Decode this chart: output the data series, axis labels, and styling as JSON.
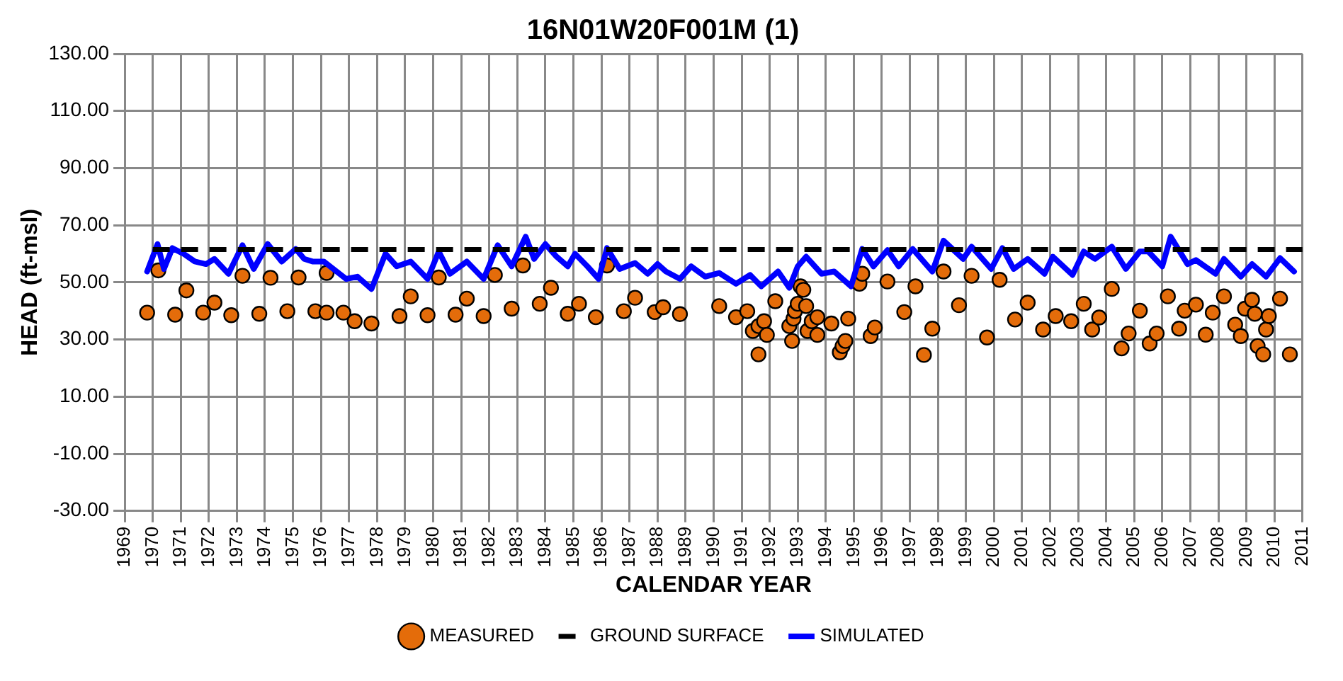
{
  "chart_data": {
    "type": "scatter",
    "title": "16N01W20F001M (1)",
    "xlabel": "CALENDAR YEAR",
    "ylabel": "HEAD (ft-msl)",
    "xlim": [
      1969,
      2011
    ],
    "xticks": [
      1969,
      1970,
      1971,
      1972,
      1973,
      1974,
      1975,
      1976,
      1977,
      1978,
      1979,
      1980,
      1981,
      1982,
      1983,
      1984,
      1985,
      1986,
      1987,
      1988,
      1989,
      1990,
      1991,
      1992,
      1993,
      1994,
      1995,
      1996,
      1997,
      1998,
      1999,
      2000,
      2001,
      2002,
      2003,
      2004,
      2005,
      2006,
      2007,
      2008,
      2009,
      2010,
      2011
    ],
    "ylim": [
      -30,
      130
    ],
    "yticks": [
      {
        "value": -30,
        "label": "-30.00"
      },
      {
        "value": -10,
        "label": "-10.00"
      },
      {
        "value": 10,
        "label": "10.00"
      },
      {
        "value": 30,
        "label": "30.00"
      },
      {
        "value": 50,
        "label": "50.00"
      },
      {
        "value": 70,
        "label": "70.00"
      },
      {
        "value": 90,
        "label": "90.00"
      },
      {
        "value": 110,
        "label": "110.00"
      },
      {
        "value": 130,
        "label": "130.00"
      }
    ],
    "grid": true,
    "legend": "bottom",
    "series": [
      {
        "name": "MEASURED",
        "type": "scatter",
        "marker": "circle",
        "color": "#e46c0a",
        "x": [
          1969.8,
          1970.2,
          1970.8,
          1971.2,
          1971.8,
          1972.2,
          1972.8,
          1973.2,
          1973.8,
          1974.2,
          1974.8,
          1975.2,
          1975.8,
          1976.2,
          1976.2,
          1976.8,
          1977.2,
          1977.8,
          1978.8,
          1979.2,
          1979.8,
          1980.2,
          1980.8,
          1981.2,
          1981.8,
          1982.2,
          1982.8,
          1983.2,
          1983.8,
          1984.2,
          1984.8,
          1985.2,
          1985.8,
          1986.2,
          1986.8,
          1987.2,
          1987.9,
          1988.2,
          1988.8,
          1990.2,
          1990.8,
          1991.2,
          1991.4,
          1991.6,
          1991.6,
          1991.8,
          1991.9,
          1992.2,
          1992.7,
          1992.8,
          1992.85,
          1992.9,
          1993.0,
          1993.1,
          1993.2,
          1993.3,
          1993.35,
          1993.5,
          1993.7,
          1993.7,
          1994.2,
          1994.5,
          1994.6,
          1994.7,
          1994.8,
          1995.2,
          1995.3,
          1995.6,
          1995.75,
          1996.2,
          1996.8,
          1997.2,
          1997.5,
          1997.8,
          1998.2,
          1998.75,
          1999.2,
          1999.75,
          2000.2,
          2000.75,
          2001.2,
          2001.75,
          2002.2,
          2002.75,
          2003.2,
          2003.5,
          2003.75,
          2004.2,
          2004.55,
          2004.8,
          2005.2,
          2005.55,
          2005.8,
          2006.2,
          2006.6,
          2006.8,
          2007.2,
          2007.55,
          2007.8,
          2008.2,
          2008.6,
          2008.8,
          2008.95,
          2009.2,
          2009.3,
          2009.4,
          2009.6,
          2009.7,
          2009.8,
          2010.2,
          2010.55
        ],
        "values": [
          39.4,
          54.2,
          38.7,
          47.2,
          39.4,
          42.9,
          38.5,
          52.3,
          39,
          51.6,
          39.9,
          51.7,
          39.9,
          39.4,
          53.3,
          39.4,
          36.4,
          35.6,
          38.2,
          45.1,
          38.5,
          51.7,
          38.7,
          44.3,
          38.2,
          52.6,
          40.8,
          55.9,
          42.5,
          48.1,
          39,
          42.5,
          37.8,
          55.9,
          39.9,
          44.6,
          39.6,
          41.3,
          38.9,
          41.7,
          37.8,
          39.9,
          33,
          24.8,
          34.7,
          36.4,
          31.6,
          43.4,
          34.7,
          29.5,
          37.3,
          39.9,
          42.5,
          48.6,
          47.4,
          41.7,
          33,
          36.4,
          31.6,
          37.8,
          35.6,
          25.5,
          27.7,
          29.5,
          37.3,
          49.5,
          53,
          31.2,
          34.2,
          50.3,
          39.6,
          48.6,
          24.6,
          33.8,
          53.8,
          42,
          52.3,
          30.7,
          50.9,
          37,
          42.9,
          33.5,
          38.2,
          36.4,
          42.5,
          33.5,
          37.7,
          47.7,
          26.9,
          32.1,
          40.1,
          28.6,
          32.1,
          45.1,
          33.8,
          40.1,
          42.2,
          31.7,
          39.4,
          45.1,
          35.2,
          31.2,
          40.8,
          43.9,
          39,
          27.7,
          24.8,
          33.5,
          38.2,
          44.3,
          24.8
        ]
      },
      {
        "name": "GROUND SURFACE",
        "type": "line",
        "marker": "none",
        "line_style": "dashed",
        "color": "#000000",
        "x": [
          1970,
          2011
        ],
        "values": [
          61.5,
          61.5
        ]
      },
      {
        "name": "SIMULATED",
        "type": "line",
        "marker": "none",
        "line_style": "solid",
        "color": "#0000ff",
        "x": [
          1969.8,
          1970.17,
          1970.4,
          1970.7,
          1971.1,
          1971.5,
          1971.9,
          1972.2,
          1972.7,
          1973.2,
          1973.6,
          1974.1,
          1974.6,
          1975.1,
          1975.4,
          1975.7,
          1976.1,
          1976.9,
          1977.3,
          1977.8,
          1978.3,
          1978.7,
          1979.2,
          1979.8,
          1980.2,
          1980.6,
          1981.2,
          1981.8,
          1982.3,
          1982.8,
          1983.3,
          1983.6,
          1984,
          1984.4,
          1984.8,
          1985.06,
          1985.5,
          1985.9,
          1986.2,
          1986.65,
          1987.2,
          1987.65,
          1988,
          1988.3,
          1988.8,
          1989.2,
          1989.7,
          1990.2,
          1990.8,
          1991.3,
          1991.7,
          1992.3,
          1992.7,
          1993,
          1993.3,
          1993.85,
          1994.3,
          1994.9,
          1995.3,
          1995.7,
          1996.2,
          1996.6,
          1997.1,
          1997.8,
          1998.2,
          1998.9,
          1999.2,
          1999.9,
          2000.3,
          2000.7,
          2001.2,
          2001.8,
          2002.1,
          2002.8,
          2003.2,
          2003.6,
          2004.2,
          2004.7,
          2005.2,
          2005.5,
          2006,
          2006.3,
          2006.9,
          2007.2,
          2007.9,
          2008.2,
          2008.8,
          2009.2,
          2009.7,
          2010.2,
          2010.7
        ],
        "values": [
          53.8,
          63.4,
          54.7,
          62,
          60,
          57.3,
          56.4,
          58.2,
          53,
          63,
          54.7,
          63.4,
          57.3,
          61.7,
          58.2,
          57.3,
          57.3,
          51.2,
          52,
          47.7,
          60,
          55.6,
          57.3,
          51.2,
          60.8,
          53,
          57.3,
          51.2,
          63,
          55.6,
          66,
          58.2,
          63.4,
          59,
          55.6,
          60,
          55.6,
          51.2,
          62,
          54.7,
          56.8,
          53,
          56.4,
          53.8,
          51.2,
          55.6,
          52,
          53.3,
          49.5,
          52.6,
          48.6,
          53.8,
          48.1,
          55.6,
          59,
          53,
          53.8,
          48.6,
          61.7,
          55.6,
          61.3,
          55.6,
          61.7,
          53.8,
          64.6,
          58.2,
          62.5,
          54.7,
          62,
          54.7,
          58.2,
          53,
          59,
          52.6,
          60.8,
          58.2,
          62.5,
          54.7,
          60.8,
          60.8,
          55.6,
          66,
          56.4,
          57.8,
          53,
          58.2,
          52,
          56.4,
          52,
          58.5,
          53.8
        ]
      }
    ]
  }
}
